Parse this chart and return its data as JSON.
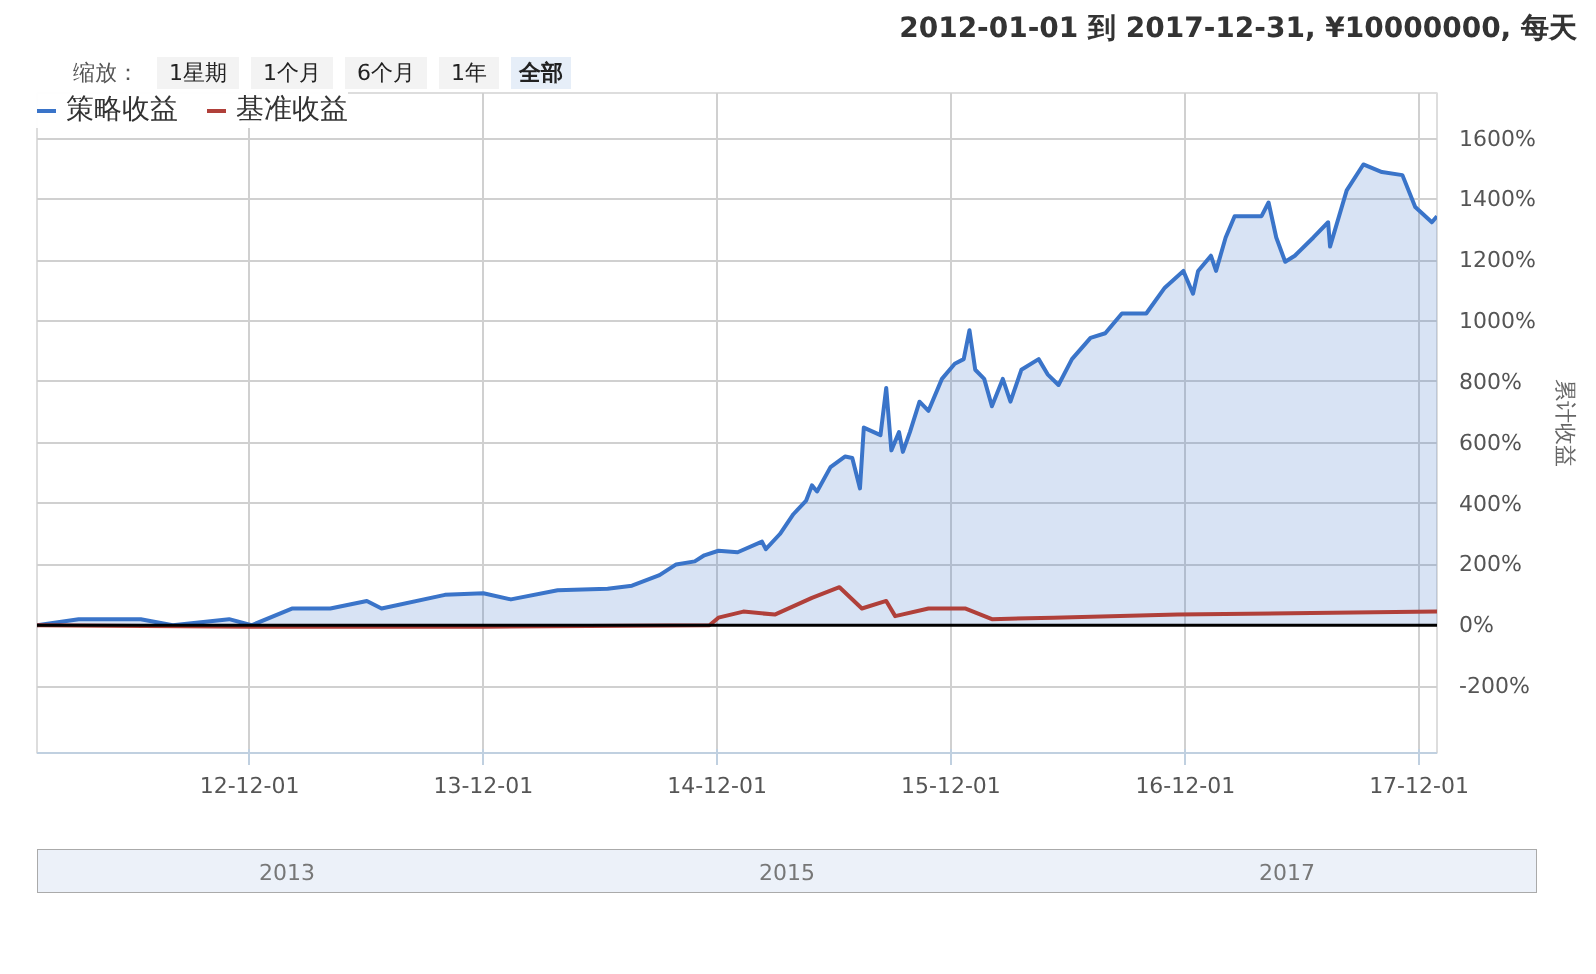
{
  "chart_data": {
    "type": "area",
    "subtitle": "2012-01-01 到 2017-12-31, ¥10000000, 每天",
    "ylabel": "累计收益",
    "annotations": [
      "缩放：",
      "1星期",
      "1个月",
      "6个月",
      "1年",
      "全部",
      "2013",
      "2015",
      "2017"
    ],
    "xlim": [
      "2012-01-04",
      "2017-12-29"
    ],
    "xticks": [
      {
        "value": "2012-12-01",
        "label": "12-12-01"
      },
      {
        "value": "2013-12-01",
        "label": "13-12-01"
      },
      {
        "value": "2014-12-01",
        "label": "14-12-01"
      },
      {
        "value": "2015-12-01",
        "label": "15-12-01"
      },
      {
        "value": "2016-12-01",
        "label": "16-12-01"
      },
      {
        "value": "2017-12-01",
        "label": "17-12-01"
      }
    ],
    "ylim": [
      -420,
      1750
    ],
    "yticks": [
      {
        "value": -200,
        "label": "-200%"
      },
      {
        "value": 0,
        "label": "0%"
      },
      {
        "value": 200,
        "label": "200%"
      },
      {
        "value": 400,
        "label": "400%"
      },
      {
        "value": 600,
        "label": "600%"
      },
      {
        "value": 800,
        "label": "800%"
      },
      {
        "value": 1000,
        "label": "1000%"
      },
      {
        "value": 1200,
        "label": "1200%"
      },
      {
        "value": 1400,
        "label": "1400%"
      },
      {
        "value": 1600,
        "label": "1600%"
      }
    ],
    "grid": true,
    "legend": "top left",
    "ref_lines": [
      {
        "axis": "y",
        "value": 0,
        "color": "#000000"
      }
    ],
    "series": [
      {
        "name": "策略收益",
        "color": "#3a74c9",
        "x": [
          "2012-01-04",
          "2012-03-09",
          "2012-06-14",
          "2012-08-03",
          "2012-10-30",
          "2012-12-04",
          "2013-02-05",
          "2013-04-06",
          "2013-06-02",
          "2013-06-25",
          "2013-10-02",
          "2013-12-01",
          "2014-01-13",
          "2014-03-27",
          "2014-06-13",
          "2014-07-21",
          "2014-09-02",
          "2014-09-28",
          "2014-10-27",
          "2014-11-11",
          "2014-12-03",
          "2015-01-02",
          "2015-02-09",
          "2015-02-15",
          "2015-03-09",
          "2015-03-30",
          "2015-04-19",
          "2015-04-28",
          "2015-05-06",
          "2015-05-27",
          "2015-06-19",
          "2015-06-30",
          "2015-07-12",
          "2015-07-18",
          "2015-08-13",
          "2015-08-22",
          "2015-08-30",
          "2015-09-11",
          "2015-09-17",
          "2015-09-28",
          "2015-10-13",
          "2015-10-27",
          "2015-11-17",
          "2015-12-07",
          "2015-12-21",
          "2015-12-30",
          "2016-01-08",
          "2016-01-22",
          "2016-02-03",
          "2016-02-20",
          "2016-03-03",
          "2016-03-20",
          "2016-04-16",
          "2016-04-30",
          "2016-05-17",
          "2016-06-07",
          "2016-07-06",
          "2016-07-29",
          "2016-08-24",
          "2016-10-01",
          "2016-10-30",
          "2016-11-28",
          "2016-12-13",
          "2016-12-21",
          "2017-01-10",
          "2017-01-18",
          "2017-02-02",
          "2017-02-16",
          "2017-03-30",
          "2017-04-10",
          "2017-04-22",
          "2017-05-06",
          "2017-05-21",
          "2017-06-19",
          "2017-07-12",
          "2017-07-15",
          "2017-08-10",
          "2017-09-05",
          "2017-10-04",
          "2017-11-05",
          "2017-11-25",
          "2017-12-21",
          "2017-12-29"
        ],
        "values": [
          0,
          20,
          20,
          0,
          20,
          0,
          55,
          55,
          80,
          55,
          100,
          105,
          85,
          115,
          120,
          130,
          165,
          200,
          210,
          230,
          245,
          240,
          275,
          250,
          300,
          365,
          410,
          460,
          440,
          520,
          555,
          550,
          450,
          650,
          625,
          780,
          575,
          635,
          570,
          635,
          735,
          705,
          810,
          860,
          875,
          970,
          840,
          810,
          720,
          810,
          735,
          840,
          875,
          825,
          790,
          875,
          945,
          960,
          1025,
          1025,
          1110,
          1165,
          1090,
          1165,
          1215,
          1165,
          1275,
          1345,
          1345,
          1390,
          1275,
          1195,
          1215,
          1275,
          1325,
          1245,
          1430,
          1515,
          1490,
          1480,
          1375,
          1325,
          1345
        ]
      },
      {
        "name": "基准收益",
        "type": "line",
        "color": "#b0403a",
        "x": [
          "2012-01-04",
          "2012-12-04",
          "2013-12-01",
          "2014-11-19",
          "2014-12-03",
          "2015-01-11",
          "2015-03-01",
          "2015-04-28",
          "2015-06-10",
          "2015-07-15",
          "2015-08-22",
          "2015-09-05",
          "2015-10-27",
          "2015-12-24",
          "2016-02-03",
          "2016-05-09",
          "2016-11-19",
          "2017-12-29"
        ],
        "values": [
          0,
          -5,
          -5,
          0,
          25,
          45,
          35,
          90,
          125,
          55,
          80,
          30,
          55,
          55,
          20,
          25,
          35,
          45
        ]
      }
    ]
  }
}
